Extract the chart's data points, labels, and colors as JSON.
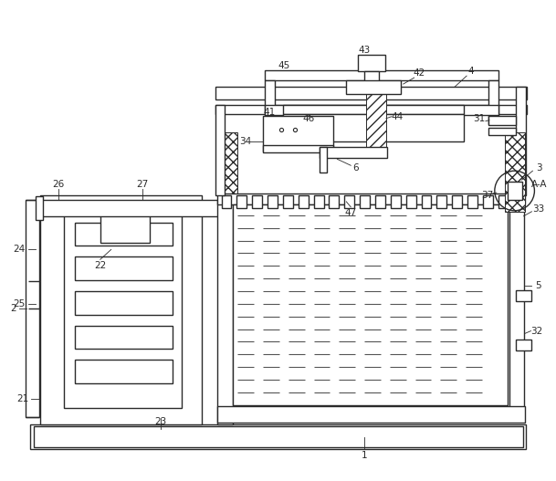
{
  "bg_color": "#ffffff",
  "line_color": "#2a2a2a",
  "dash_color": "#555555",
  "fig_width": 6.09,
  "fig_height": 5.27,
  "dpi": 100
}
